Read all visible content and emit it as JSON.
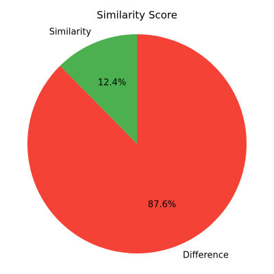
{
  "chart_data": {
    "type": "pie",
    "title": "Similarity Score",
    "slices": [
      {
        "label": "Similarity",
        "value": 12.4,
        "pct_label": "12.4%",
        "color": "#4caf50"
      },
      {
        "label": "Difference",
        "value": 87.6,
        "pct_label": "87.6%",
        "color": "#f44336"
      }
    ],
    "start_angle_deg": 90,
    "direction": "counterclockwise",
    "legend": "none"
  }
}
